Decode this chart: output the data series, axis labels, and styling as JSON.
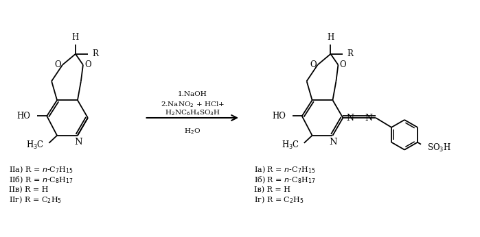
{
  "background_color": "#ffffff",
  "fig_width": 6.99,
  "fig_height": 3.46,
  "dpi": 100,
  "reagents_line1": "1.NaOH",
  "reagents_line2": "2.NaNO$_2$ + HCl+",
  "reagents_line3": "H$_2$NC$_6$H$_4$SO$_3$H",
  "reagents_line4": "H$_2$O",
  "labels_left": [
    "IIa) R = $n$-C$_7$H$_{15}$",
    "IIб) R = $n$-C$_8$H$_{17}$",
    "IIв) R = H",
    "IIг) R = C$_2$H$_5$"
  ],
  "labels_right": [
    "Ia) R = $n$-C$_7$H$_{15}$",
    "Iб) R = $n$-C$_8$H$_{17}$",
    "Iв) R = H",
    "Iг) R = C$_2$H$_5$"
  ],
  "text_color": "#000000",
  "font_size": 8.5,
  "label_font_size": 8.0
}
